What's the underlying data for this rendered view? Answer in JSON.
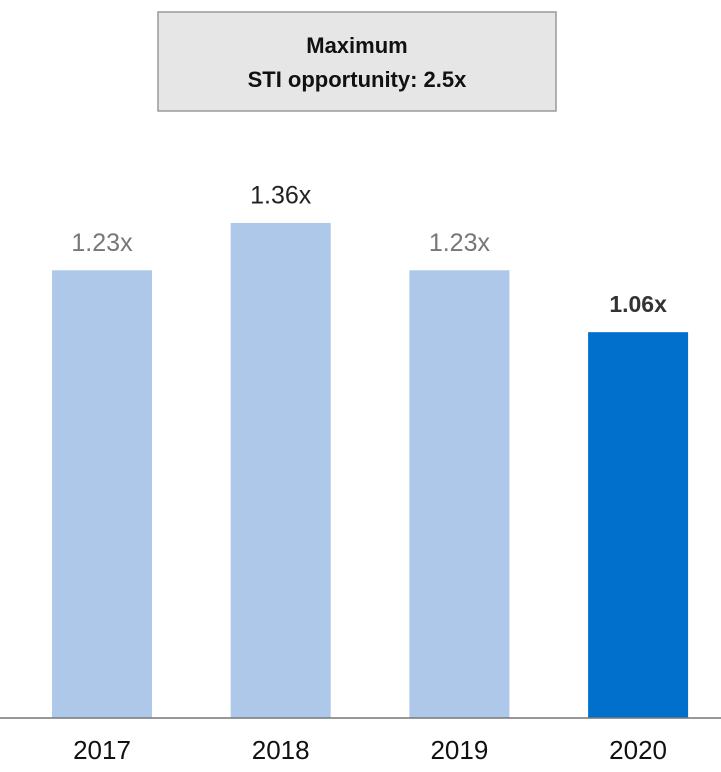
{
  "chart_data": {
    "type": "bar",
    "title": [
      "Maximum",
      "STI opportunity: 2.5x"
    ],
    "categories": [
      "2017",
      "2018",
      "2019",
      "2020"
    ],
    "values": [
      1.23,
      1.36,
      1.23,
      1.06
    ],
    "value_labels": [
      "1.23x",
      "1.36x",
      "1.23x",
      "1.06x"
    ],
    "colors": [
      "#aec8e9",
      "#aec8e9",
      "#aec8e9",
      "#0070cc"
    ],
    "ylim": [
      0,
      2
    ]
  }
}
